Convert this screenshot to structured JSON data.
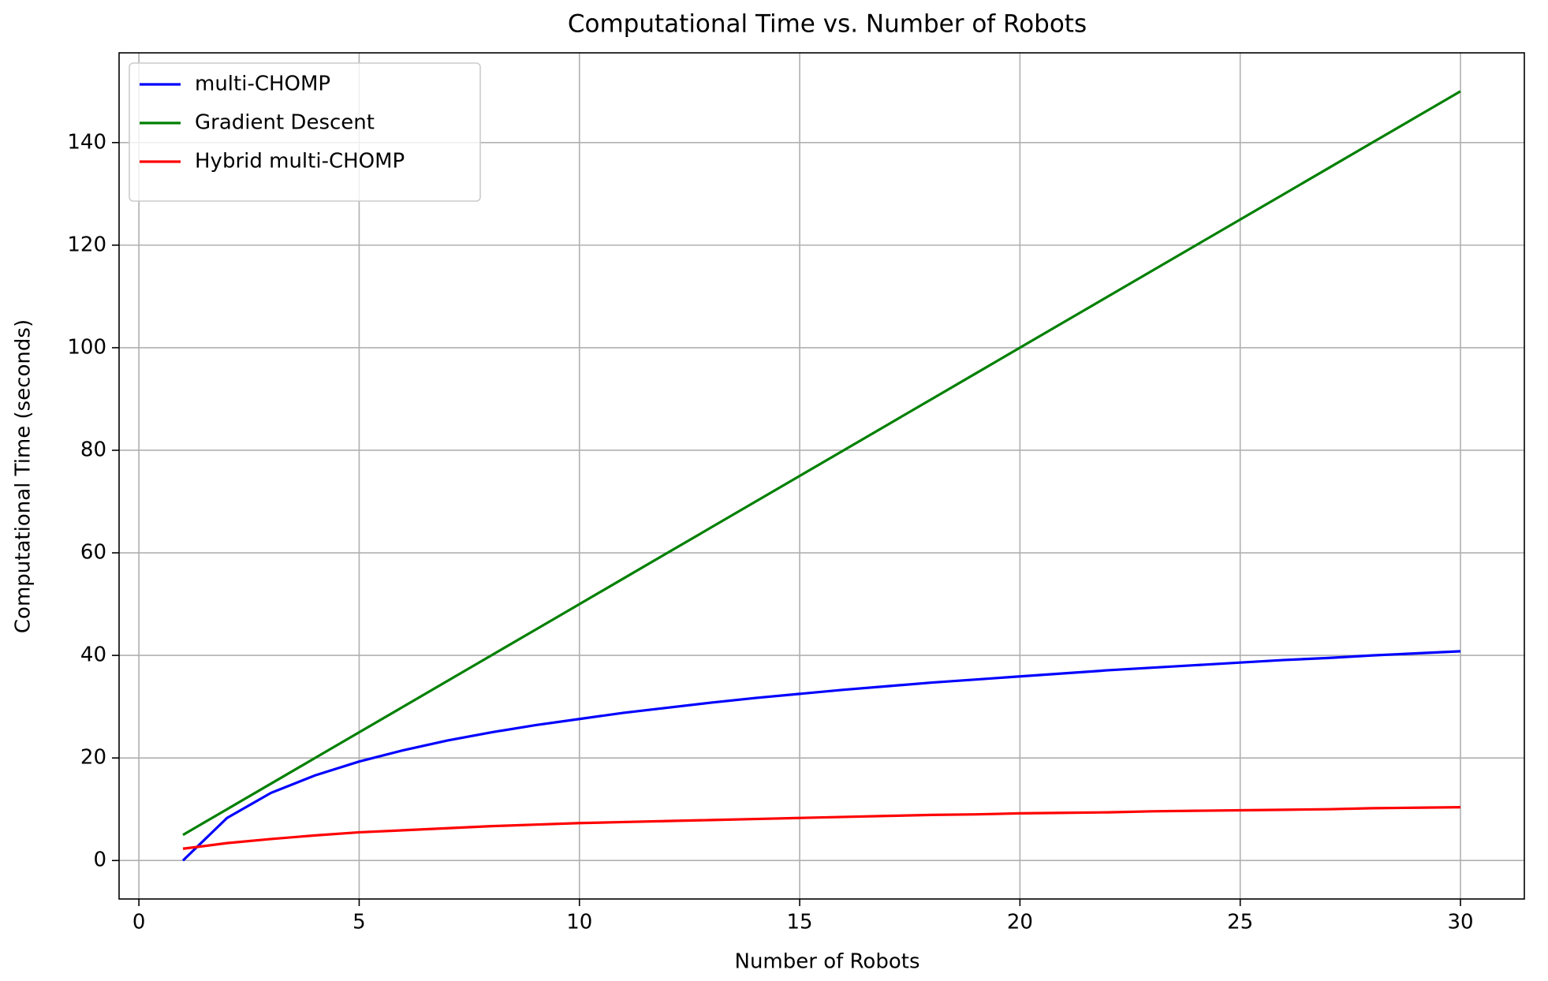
{
  "chart_data": {
    "type": "line",
    "title": "Computational Time vs. Number of Robots",
    "x_label": "Number of Robots",
    "y_label": "Computational Time (seconds)",
    "x": [
      1,
      2,
      3,
      4,
      5,
      6,
      7,
      8,
      9,
      10,
      11,
      12,
      13,
      14,
      15,
      16,
      17,
      18,
      19,
      20,
      21,
      22,
      23,
      24,
      25,
      26,
      27,
      28,
      29,
      30
    ],
    "series": [
      {
        "name": "multi-CHOMP",
        "color": "#0000ff",
        "values": [
          0,
          8.3,
          13.2,
          16.6,
          19.3,
          21.5,
          23.4,
          25.0,
          26.4,
          27.6,
          28.8,
          29.8,
          30.8,
          31.7,
          32.5,
          33.3,
          34.0,
          34.7,
          35.3,
          35.9,
          36.5,
          37.1,
          37.6,
          38.1,
          38.6,
          39.1,
          39.5,
          40.0,
          40.4,
          40.8
        ]
      },
      {
        "name": "Gradient Descent",
        "color": "#008000",
        "values": [
          5,
          10,
          15,
          20,
          25,
          30,
          35,
          40,
          45,
          50,
          55,
          60,
          65,
          70,
          75,
          80,
          85,
          90,
          95,
          100,
          105,
          110,
          115,
          120,
          125,
          130,
          135,
          140,
          145,
          150
        ]
      },
      {
        "name": "Hybrid multi-CHOMP",
        "color": "#ff0000",
        "values": [
          2.3,
          3.4,
          4.2,
          4.9,
          5.5,
          5.9,
          6.3,
          6.7,
          7.0,
          7.3,
          7.5,
          7.7,
          7.9,
          8.1,
          8.3,
          8.5,
          8.7,
          8.9,
          9.0,
          9.2,
          9.3,
          9.4,
          9.6,
          9.7,
          9.8,
          9.9,
          10.0,
          10.2,
          10.3,
          10.4
        ]
      }
    ],
    "xlim": [
      -0.45,
      31.45
    ],
    "ylim": [
      -7.5,
      157.5
    ],
    "xticks": [
      0,
      5,
      10,
      15,
      20,
      25,
      30
    ],
    "yticks": [
      0,
      20,
      40,
      60,
      80,
      100,
      120,
      140
    ],
    "grid": true,
    "legend": "upper left"
  }
}
